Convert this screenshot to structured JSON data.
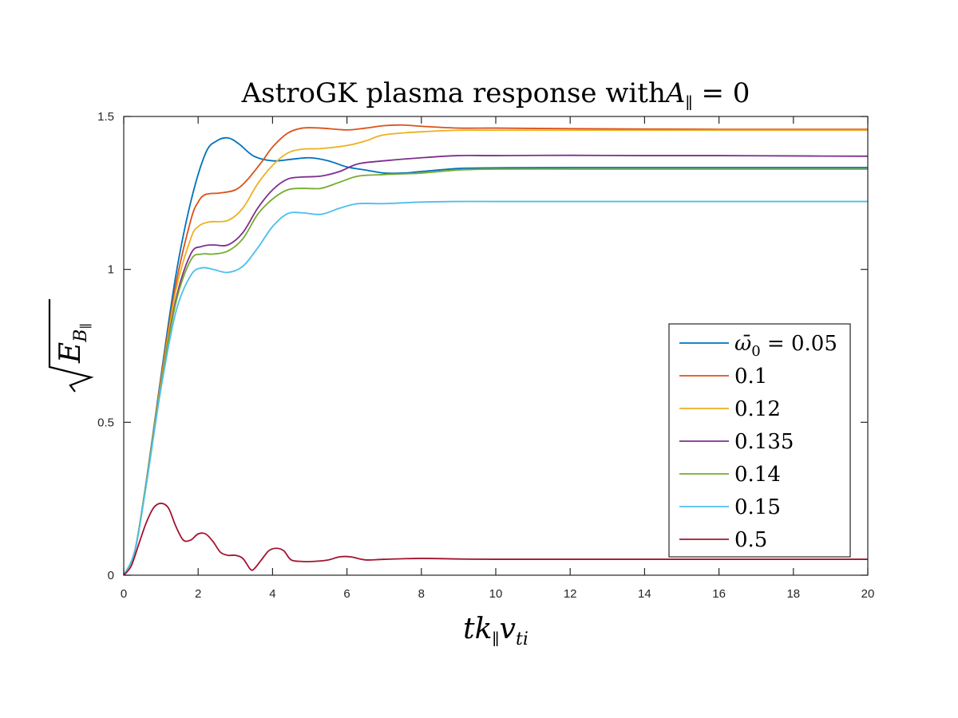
{
  "chart_data": {
    "type": "line",
    "title": "AstroGK plasma response with",
    "title_math": {
      "symbol": "A",
      "sub": "∥",
      "rest": " = 0"
    },
    "xlabel": {
      "t": "t",
      "k": "k",
      "k_sub": "∥",
      "v": "v",
      "v_sub": "ti"
    },
    "ylabel": {
      "E": "E",
      "E_sub": "B",
      "E_subsub": "∥"
    },
    "xlim": [
      0,
      20
    ],
    "ylim": [
      0,
      1.5
    ],
    "xticks": [
      "0",
      "2",
      "4",
      "6",
      "8",
      "10",
      "12",
      "14",
      "16",
      "18",
      "20"
    ],
    "yticks": [
      "0",
      "0.5",
      "1",
      "1.5"
    ],
    "grid": false,
    "legend_position": "right-middle",
    "legend_first_prefix": "ω̄",
    "legend_first_prefix_sub": "0",
    "series": [
      {
        "name": "0.05",
        "color": "#0072BD",
        "x": [
          0,
          0.3,
          0.6,
          1.0,
          1.4,
          1.8,
          2.2,
          2.5,
          2.8,
          3.1,
          3.5,
          4.0,
          4.5,
          5.0,
          5.5,
          6.0,
          6.5,
          7.0,
          7.5,
          8.0,
          9.0,
          10.0,
          12.0,
          14.0,
          16.0,
          18.0,
          20.0
        ],
        "y": [
          0,
          0.08,
          0.3,
          0.65,
          0.98,
          1.22,
          1.38,
          1.42,
          1.43,
          1.41,
          1.37,
          1.355,
          1.36,
          1.365,
          1.355,
          1.335,
          1.325,
          1.315,
          1.315,
          1.32,
          1.33,
          1.332,
          1.333,
          1.333,
          1.333,
          1.333,
          1.333
        ]
      },
      {
        "name": "0.1",
        "color": "#D95319",
        "x": [
          0,
          0.3,
          0.6,
          1.0,
          1.4,
          1.8,
          2.0,
          2.2,
          2.6,
          3.0,
          3.3,
          3.7,
          4.0,
          4.4,
          4.8,
          5.3,
          6.0,
          6.5,
          7.0,
          7.5,
          8.0,
          9.0,
          10.0,
          12.0,
          14.0,
          16.0,
          18.0,
          20.0
        ],
        "y": [
          0,
          0.08,
          0.3,
          0.64,
          0.95,
          1.16,
          1.22,
          1.245,
          1.25,
          1.26,
          1.29,
          1.35,
          1.4,
          1.445,
          1.462,
          1.462,
          1.456,
          1.462,
          1.47,
          1.472,
          1.468,
          1.462,
          1.462,
          1.46,
          1.459,
          1.458,
          1.458,
          1.458
        ]
      },
      {
        "name": "0.12",
        "color": "#EDB120",
        "x": [
          0,
          0.3,
          0.6,
          1.0,
          1.4,
          1.8,
          2.0,
          2.3,
          2.8,
          3.2,
          3.6,
          4.0,
          4.4,
          4.8,
          5.3,
          6.0,
          6.5,
          7.0,
          8.0,
          9.0,
          10.0,
          12.0,
          14.0,
          16.0,
          18.0,
          20.0
        ],
        "y": [
          0,
          0.08,
          0.3,
          0.63,
          0.93,
          1.1,
          1.14,
          1.155,
          1.16,
          1.2,
          1.28,
          1.34,
          1.38,
          1.393,
          1.395,
          1.405,
          1.42,
          1.44,
          1.45,
          1.455,
          1.455,
          1.455,
          1.455,
          1.455,
          1.455,
          1.455
        ]
      },
      {
        "name": "0.135",
        "color": "#7E2F8E",
        "x": [
          0,
          0.3,
          0.6,
          1.0,
          1.4,
          1.8,
          2.1,
          2.4,
          2.8,
          3.2,
          3.6,
          4.0,
          4.4,
          4.8,
          5.3,
          5.8,
          6.3,
          7.0,
          8.0,
          9.0,
          10.0,
          12.0,
          14.0,
          16.0,
          18.0,
          20.0
        ],
        "y": [
          0,
          0.08,
          0.3,
          0.62,
          0.9,
          1.05,
          1.075,
          1.08,
          1.08,
          1.12,
          1.2,
          1.26,
          1.295,
          1.302,
          1.305,
          1.32,
          1.345,
          1.355,
          1.365,
          1.372,
          1.372,
          1.373,
          1.372,
          1.372,
          1.371,
          1.37
        ]
      },
      {
        "name": "0.14",
        "color": "#77AC30",
        "x": [
          0,
          0.3,
          0.6,
          1.0,
          1.4,
          1.8,
          2.1,
          2.4,
          2.8,
          3.2,
          3.6,
          4.0,
          4.4,
          4.8,
          5.3,
          5.8,
          6.3,
          7.0,
          8.0,
          9.0,
          10.0,
          12.0,
          14.0,
          16.0,
          18.0,
          20.0
        ],
        "y": [
          0,
          0.08,
          0.3,
          0.62,
          0.89,
          1.03,
          1.05,
          1.05,
          1.06,
          1.1,
          1.18,
          1.23,
          1.26,
          1.265,
          1.265,
          1.285,
          1.305,
          1.31,
          1.315,
          1.325,
          1.328,
          1.328,
          1.328,
          1.328,
          1.328,
          1.328
        ]
      },
      {
        "name": "0.15",
        "color": "#4DBEEE",
        "x": [
          0,
          0.3,
          0.6,
          1.0,
          1.4,
          1.8,
          2.1,
          2.4,
          2.8,
          3.2,
          3.6,
          4.0,
          4.4,
          4.8,
          5.3,
          5.8,
          6.3,
          7.0,
          8.0,
          9.0,
          10.0,
          12.0,
          14.0,
          16.0,
          18.0,
          20.0
        ],
        "y": [
          0,
          0.08,
          0.29,
          0.61,
          0.86,
          0.98,
          1.005,
          1.0,
          0.99,
          1.01,
          1.07,
          1.14,
          1.182,
          1.185,
          1.18,
          1.2,
          1.215,
          1.215,
          1.22,
          1.222,
          1.222,
          1.222,
          1.222,
          1.222,
          1.222,
          1.222
        ]
      },
      {
        "name": "0.5",
        "color": "#A2142F",
        "x": [
          0,
          0.2,
          0.4,
          0.6,
          0.8,
          1.0,
          1.2,
          1.4,
          1.6,
          1.8,
          2.0,
          2.2,
          2.4,
          2.6,
          2.8,
          3.0,
          3.2,
          3.4,
          3.5,
          3.7,
          3.9,
          4.1,
          4.3,
          4.5,
          4.8,
          5.1,
          5.5,
          5.8,
          6.1,
          6.5,
          7.0,
          8.0,
          9.0,
          10.0,
          12.0,
          14.0,
          16.0,
          18.0,
          20.0
        ],
        "y": [
          0,
          0.03,
          0.1,
          0.17,
          0.22,
          0.235,
          0.22,
          0.16,
          0.115,
          0.115,
          0.135,
          0.135,
          0.11,
          0.075,
          0.065,
          0.065,
          0.055,
          0.02,
          0.02,
          0.05,
          0.08,
          0.088,
          0.08,
          0.05,
          0.045,
          0.045,
          0.05,
          0.06,
          0.06,
          0.05,
          0.052,
          0.055,
          0.053,
          0.052,
          0.052,
          0.052,
          0.052,
          0.052,
          0.052
        ]
      }
    ]
  }
}
